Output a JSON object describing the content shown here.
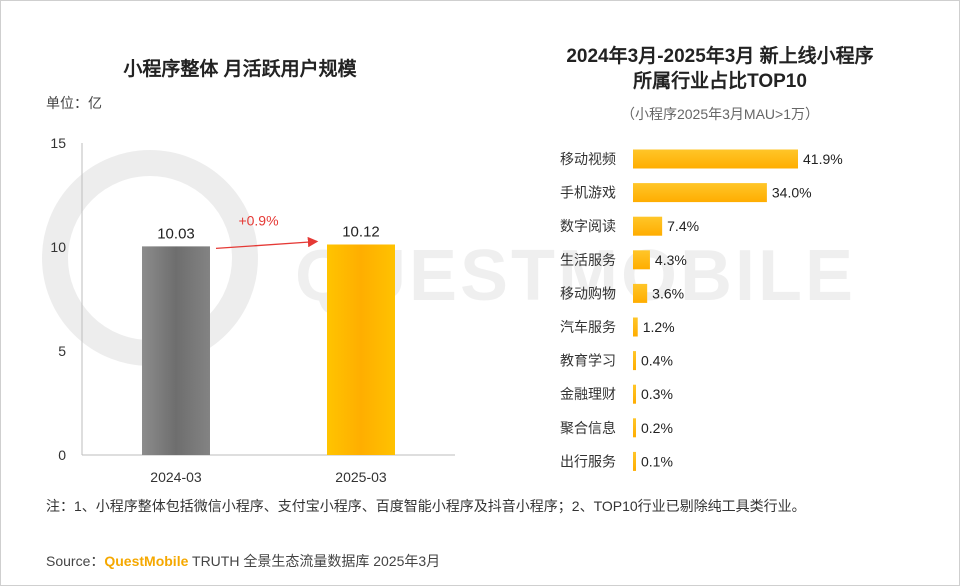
{
  "watermark": {
    "text": "QUESTMOBILE"
  },
  "left_chart": {
    "title": "小程序整体 月活跃用户规模",
    "unit_label": "单位：亿",
    "change_label": "+0.9%"
  },
  "right_chart": {
    "title_line1": "2024年3月-2025年3月 新上线小程序",
    "title_line2": "所属行业占比TOP10",
    "subtitle": "（小程序2025年3月MAU>1万）"
  },
  "chart_data": [
    {
      "type": "bar",
      "categories": [
        "2024-03",
        "2025-03"
      ],
      "values": [
        10.03,
        10.12
      ],
      "value_labels": [
        "10.03",
        "10.12"
      ],
      "ylim": [
        0,
        15
      ],
      "yticks": [
        0,
        5,
        10,
        15
      ],
      "colors": [
        "#7a7a7a",
        "#ffbb00"
      ]
    },
    {
      "type": "bar",
      "orientation": "horizontal",
      "categories": [
        "移动视频",
        "手机游戏",
        "数字阅读",
        "生活服务",
        "移动购物",
        "汽车服务",
        "教育学习",
        "金融理财",
        "聚合信息",
        "出行服务"
      ],
      "values": [
        41.9,
        34.0,
        7.4,
        4.3,
        3.6,
        1.2,
        0.4,
        0.3,
        0.2,
        0.1
      ],
      "value_labels": [
        "41.9%",
        "34.0%",
        "7.4%",
        "4.3%",
        "3.6%",
        "1.2%",
        "0.4%",
        "0.3%",
        "0.2%",
        "0.1%"
      ],
      "color": "#ffbb00"
    }
  ],
  "footnote": "注：1、小程序整体包括微信小程序、支付宝小程序、百度智能小程序及抖音小程序；2、TOP10行业已剔除纯工具类行业。",
  "source": {
    "prefix": "Source：",
    "brand": "QuestMobile",
    "suffix": " TRUTH 全景生态流量数据库 2025年3月"
  }
}
